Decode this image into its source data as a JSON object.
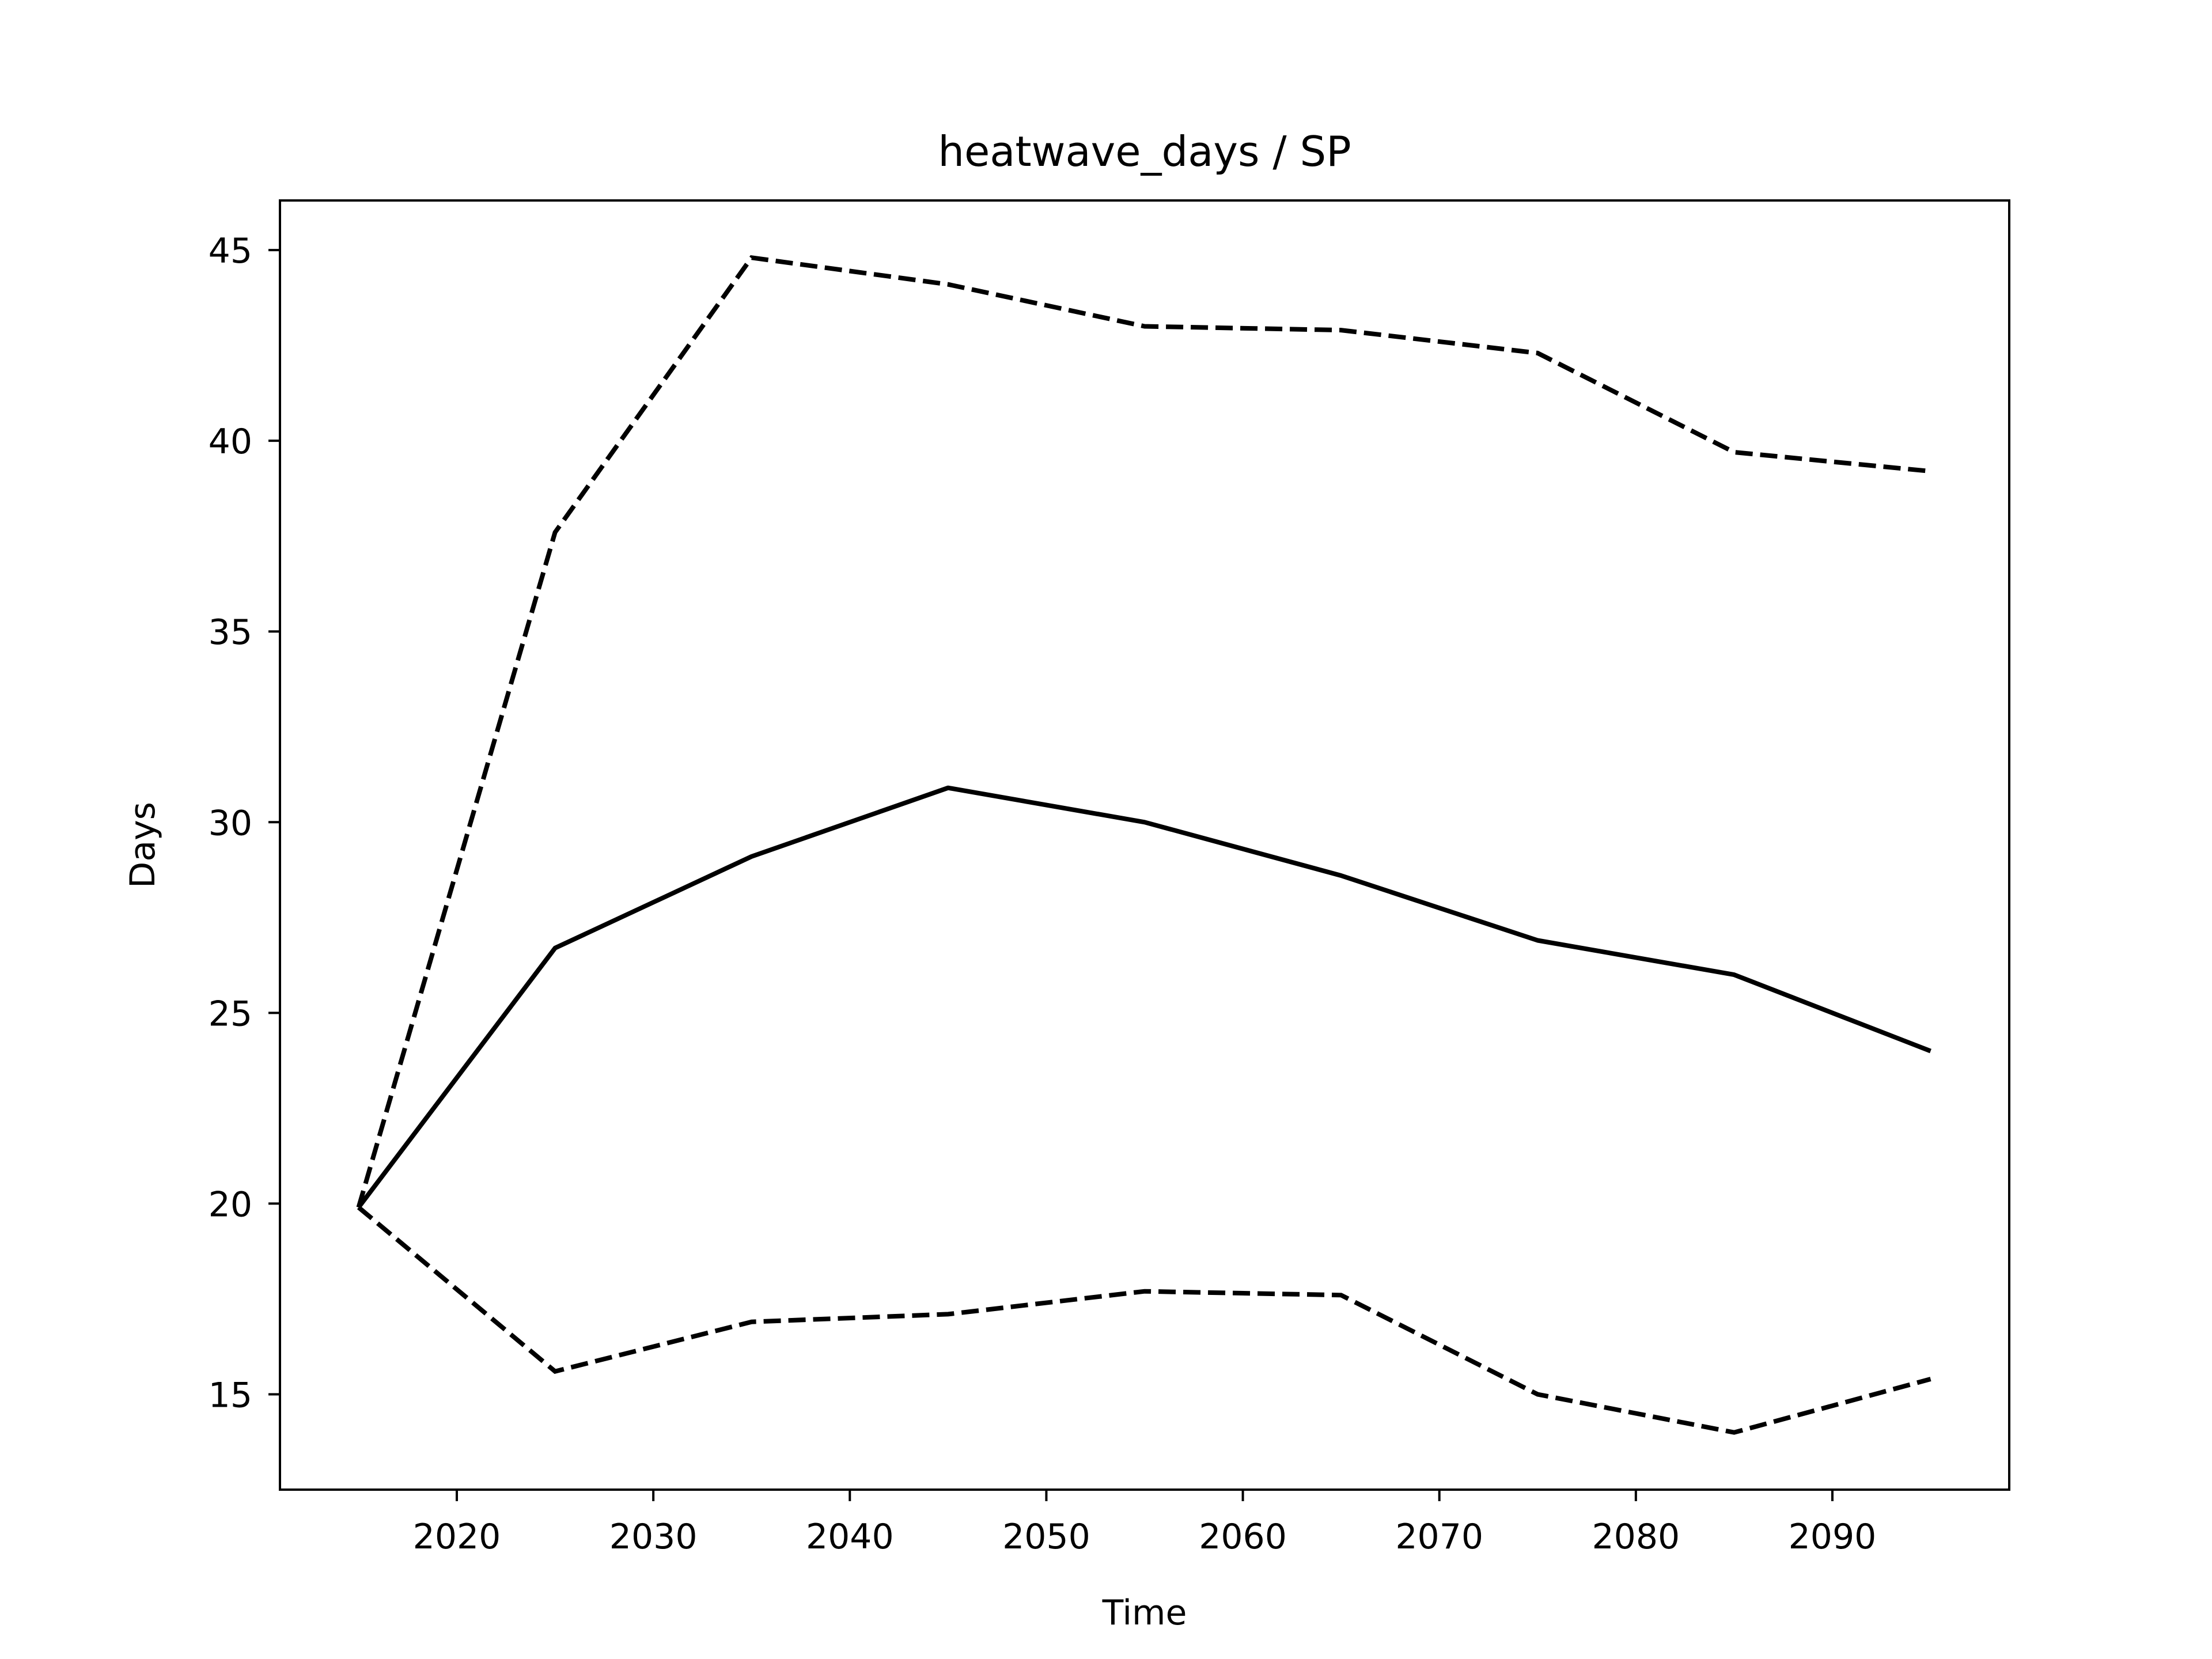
{
  "chart_data": {
    "type": "line",
    "title": "heatwave_days / SP",
    "xlabel": "Time",
    "ylabel": "Days",
    "xlim": [
      2011,
      2099
    ],
    "ylim": [
      12.5,
      46.3
    ],
    "xticks": [
      2020,
      2030,
      2040,
      2050,
      2060,
      2070,
      2080,
      2090
    ],
    "yticks": [
      15,
      20,
      25,
      30,
      35,
      40,
      45
    ],
    "grid": false,
    "legend": "none",
    "x": [
      2015,
      2025,
      2035,
      2045,
      2055,
      2065,
      2075,
      2085,
      2095
    ],
    "series": [
      {
        "style": "solid",
        "color": "#000000",
        "values": [
          19.9,
          26.7,
          29.1,
          30.9,
          30.0,
          28.6,
          26.9,
          26.0,
          24.0
        ]
      },
      {
        "style": "dashed",
        "color": "#000000",
        "values": [
          19.9,
          37.6,
          44.8,
          44.1,
          43.0,
          42.9,
          42.3,
          39.7,
          39.2
        ]
      },
      {
        "style": "dashed",
        "color": "#000000",
        "values": [
          19.9,
          15.6,
          16.9,
          17.1,
          17.7,
          17.6,
          15.0,
          14.0,
          15.4
        ]
      }
    ]
  }
}
